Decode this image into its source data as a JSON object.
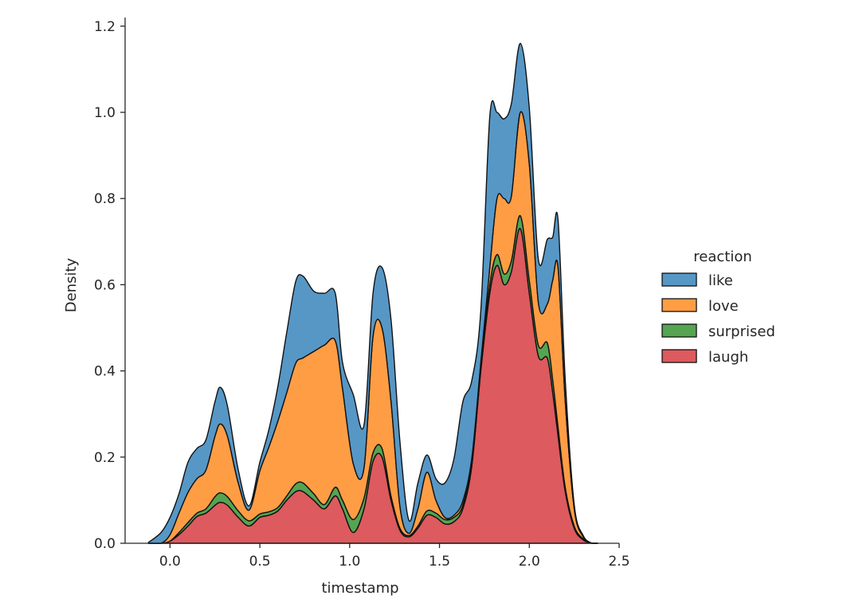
{
  "chart_data": {
    "type": "area",
    "xlabel": "timestamp",
    "ylabel": "Density",
    "xlim": [
      -0.25,
      2.5
    ],
    "ylim": [
      0,
      1.22
    ],
    "xticks": [
      "0.0",
      "0.5",
      "1.0",
      "1.5",
      "2.0",
      "2.5"
    ],
    "yticks": [
      "0.0",
      "0.2",
      "0.4",
      "0.6",
      "0.8",
      "1.0",
      "1.2"
    ],
    "legend": {
      "title": "reaction",
      "position": "right",
      "entries": [
        "like",
        "love",
        "surprised",
        "laugh"
      ]
    },
    "x": [
      -0.12,
      -0.05,
      0.0,
      0.05,
      0.1,
      0.15,
      0.2,
      0.25,
      0.28,
      0.32,
      0.38,
      0.44,
      0.5,
      0.55,
      0.6,
      0.65,
      0.7,
      0.74,
      0.8,
      0.86,
      0.92,
      0.96,
      1.02,
      1.08,
      1.13,
      1.18,
      1.23,
      1.28,
      1.33,
      1.38,
      1.43,
      1.48,
      1.53,
      1.58,
      1.63,
      1.68,
      1.73,
      1.78,
      1.82,
      1.86,
      1.9,
      1.95,
      2.0,
      2.05,
      2.1,
      2.13,
      2.16,
      2.2,
      2.25,
      2.3,
      2.35,
      2.38
    ],
    "series": [
      {
        "name": "laugh",
        "color": "#dd5a5e",
        "values": [
          0,
          0,
          0.005,
          0.02,
          0.04,
          0.062,
          0.07,
          0.088,
          0.095,
          0.088,
          0.06,
          0.04,
          0.06,
          0.065,
          0.075,
          0.1,
          0.12,
          0.12,
          0.1,
          0.08,
          0.11,
          0.08,
          0.025,
          0.08,
          0.19,
          0.2,
          0.1,
          0.03,
          0.015,
          0.035,
          0.065,
          0.06,
          0.045,
          0.05,
          0.08,
          0.18,
          0.4,
          0.58,
          0.645,
          0.6,
          0.63,
          0.73,
          0.58,
          0.435,
          0.43,
          0.35,
          0.25,
          0.12,
          0.035,
          0.008,
          0,
          0
        ]
      },
      {
        "name": "surprised",
        "color": "#55a451",
        "values": [
          0,
          0,
          0,
          0.005,
          0.008,
          0.008,
          0.01,
          0.02,
          0.022,
          0.02,
          0.015,
          0.012,
          0.008,
          0.008,
          0.008,
          0.01,
          0.018,
          0.02,
          0.015,
          0.01,
          0.02,
          0.02,
          0.03,
          0.025,
          0.02,
          0.02,
          0.01,
          0.005,
          0.003,
          0.005,
          0.01,
          0.01,
          0.01,
          0.01,
          0.008,
          0.008,
          0.01,
          0.02,
          0.025,
          0.025,
          0.025,
          0.03,
          0.03,
          0.025,
          0.035,
          0.03,
          0.02,
          0.01,
          0.005,
          0.002,
          0,
          0
        ]
      },
      {
        "name": "love",
        "color": "#ff9d45",
        "values": [
          0,
          0,
          0.015,
          0.045,
          0.07,
          0.08,
          0.09,
          0.14,
          0.16,
          0.14,
          0.065,
          0.025,
          0.1,
          0.15,
          0.2,
          0.24,
          0.28,
          0.29,
          0.33,
          0.37,
          0.34,
          0.26,
          0.13,
          0.07,
          0.27,
          0.28,
          0.22,
          0.05,
          0.005,
          0.04,
          0.09,
          0.03,
          0.005,
          0.005,
          0.01,
          0.01,
          0.01,
          0.04,
          0.13,
          0.175,
          0.15,
          0.24,
          0.27,
          0.1,
          0.09,
          0.23,
          0.37,
          0.2,
          0.04,
          0.005,
          0,
          0
        ]
      },
      {
        "name": "like",
        "color": "#5697c6",
        "values": [
          0.002,
          0.025,
          0.04,
          0.045,
          0.07,
          0.07,
          0.07,
          0.08,
          0.085,
          0.07,
          0.03,
          0.01,
          0.02,
          0.04,
          0.08,
          0.14,
          0.19,
          0.19,
          0.14,
          0.12,
          0.11,
          0.06,
          0.16,
          0.1,
          0.1,
          0.14,
          0.19,
          0.15,
          0.03,
          0.06,
          0.04,
          0.05,
          0.08,
          0.13,
          0.23,
          0.18,
          0.12,
          0.35,
          0.2,
          0.185,
          0.215,
          0.16,
          0.13,
          0.1,
          0.15,
          0.1,
          0.11,
          0.05,
          0.01,
          0.003,
          0,
          0
        ]
      }
    ]
  }
}
